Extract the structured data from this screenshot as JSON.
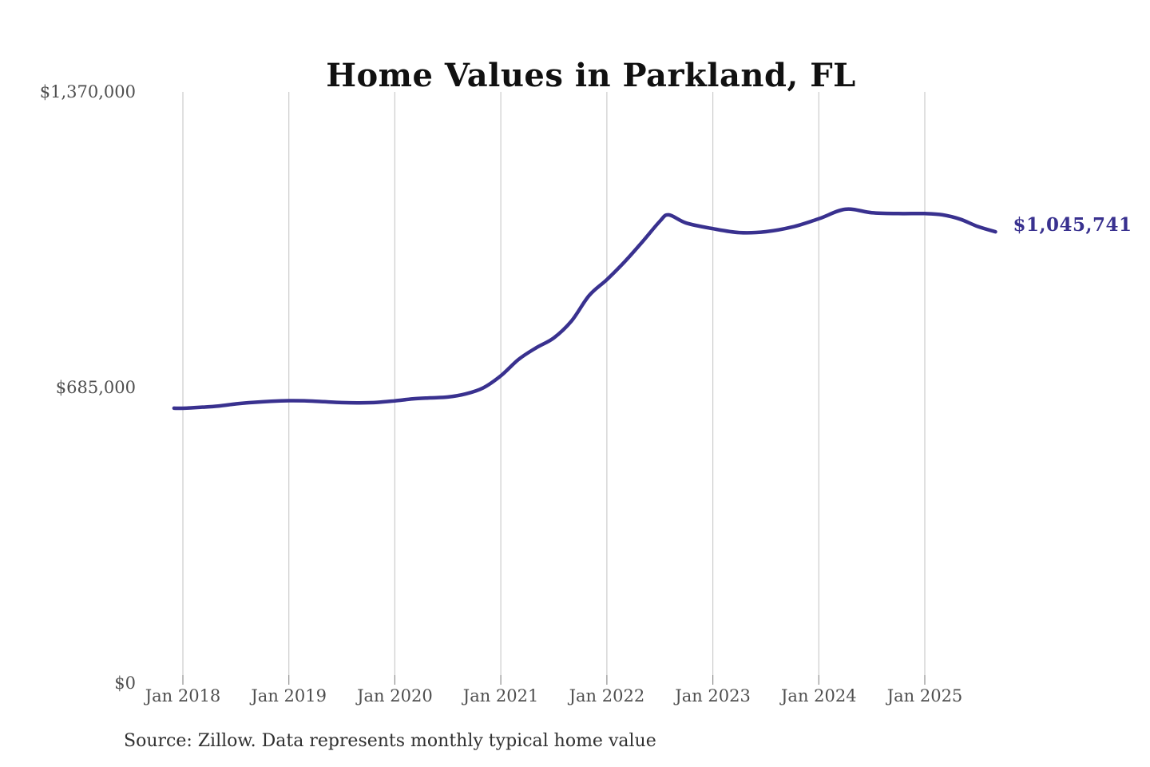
{
  "title": "Home Values in Parkland, FL",
  "source_note": "Source: Zillow. Data represents monthly typical home value",
  "colors": {
    "line": "#39318F",
    "last_label": "#39318F",
    "grid": "#cccccc",
    "tick": "#8f8f8f",
    "axis_text": "#4f4f4f",
    "title_text": "#111111",
    "source_text": "#303030",
    "background": "#ffffff"
  },
  "chart_data": {
    "type": "line",
    "title": "Home Values in Parkland, FL",
    "xlabel": "",
    "ylabel": "",
    "ylim": [
      0,
      1370000
    ],
    "grid": "vertical-only",
    "legend": "none",
    "y_ticks": [
      {
        "value": 0,
        "label": "$0"
      },
      {
        "value": 685000,
        "label": "$685,000"
      },
      {
        "value": 1370000,
        "label": "$1,370,000"
      }
    ],
    "x_ticks": [
      {
        "month_index": 0,
        "label": "Jan 2018"
      },
      {
        "month_index": 12,
        "label": "Jan 2019"
      },
      {
        "month_index": 24,
        "label": "Jan 2020"
      },
      {
        "month_index": 36,
        "label": "Jan 2021"
      },
      {
        "month_index": 48,
        "label": "Jan 2022"
      },
      {
        "month_index": 60,
        "label": "Jan 2023"
      },
      {
        "month_index": 72,
        "label": "Jan 2024"
      },
      {
        "month_index": 84,
        "label": "Jan 2025"
      }
    ],
    "series": [
      {
        "name": "Monthly typical home value",
        "points": [
          [
            "2017-12",
            637000
          ],
          [
            "2018-01",
            636800
          ],
          [
            "2018-03",
            639000
          ],
          [
            "2018-05",
            642000
          ],
          [
            "2018-07",
            647000
          ],
          [
            "2018-09",
            650500
          ],
          [
            "2018-11",
            653000
          ],
          [
            "2019-01",
            654500
          ],
          [
            "2019-03",
            654000
          ],
          [
            "2019-05",
            652000
          ],
          [
            "2019-07",
            650000
          ],
          [
            "2019-09",
            649500
          ],
          [
            "2019-11",
            650500
          ],
          [
            "2020-01",
            654000
          ],
          [
            "2020-03",
            658500
          ],
          [
            "2020-05",
            661000
          ],
          [
            "2020-07",
            663000
          ],
          [
            "2020-09",
            670000
          ],
          [
            "2020-11",
            684000
          ],
          [
            "2021-01",
            712000
          ],
          [
            "2021-03",
            750000
          ],
          [
            "2021-05",
            777000
          ],
          [
            "2021-07",
            800000
          ],
          [
            "2021-09",
            839000
          ],
          [
            "2021-11",
            898000
          ],
          [
            "2022-01",
            935000
          ],
          [
            "2022-03",
            976000
          ],
          [
            "2022-05",
            1022000
          ],
          [
            "2022-07",
            1070000
          ],
          [
            "2022-08",
            1085000
          ],
          [
            "2022-10",
            1066000
          ],
          [
            "2023-01",
            1053000
          ],
          [
            "2023-04",
            1044000
          ],
          [
            "2023-07",
            1046000
          ],
          [
            "2023-10",
            1057000
          ],
          [
            "2024-01",
            1076000
          ],
          [
            "2024-04",
            1098000
          ],
          [
            "2024-07",
            1090000
          ],
          [
            "2024-10",
            1088000
          ],
          [
            "2025-01",
            1088000
          ],
          [
            "2025-03",
            1085000
          ],
          [
            "2025-05",
            1075000
          ],
          [
            "2025-07",
            1058000
          ],
          [
            "2025-09",
            1045741
          ]
        ]
      }
    ],
    "last_value": 1045741,
    "last_point_label": "$1,045,741"
  }
}
